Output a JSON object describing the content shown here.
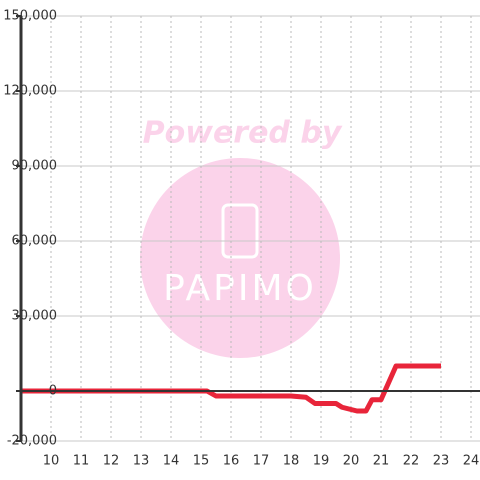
{
  "chart_data": {
    "type": "line",
    "x": [
      9,
      15.2,
      15.5,
      16,
      18,
      18.5,
      18.8,
      19.5,
      19.7,
      20.2,
      20.5,
      20.7,
      21.0,
      21.5,
      23
    ],
    "series": [
      {
        "color": "#e8253a",
        "values": [
          0,
          0,
          -2000,
          -2000,
          -2000,
          -2500,
          -5000,
          -5000,
          -6500,
          -8000,
          -8000,
          -3500,
          -3500,
          10000,
          10000
        ]
      }
    ],
    "xlim": [
      9,
      24.3
    ],
    "xticks": [
      10,
      11,
      12,
      13,
      14,
      15,
      16,
      17,
      18,
      19,
      20,
      21,
      22,
      23,
      24
    ],
    "ylim": [
      -20000,
      150000
    ],
    "yticks": [
      {
        "value": 150000,
        "label": "150,000"
      },
      {
        "value": 120000,
        "label": "120,000"
      },
      {
        "value": 90000,
        "label": "90,000"
      },
      {
        "value": 60000,
        "label": "60,000"
      },
      {
        "value": 30000,
        "label": "30,000"
      },
      0,
      {
        "value": -20000,
        "label": "-20,000"
      }
    ],
    "grid": true,
    "watermark": {
      "line1": "Powered by",
      "line2": "PAPIMO"
    }
  }
}
